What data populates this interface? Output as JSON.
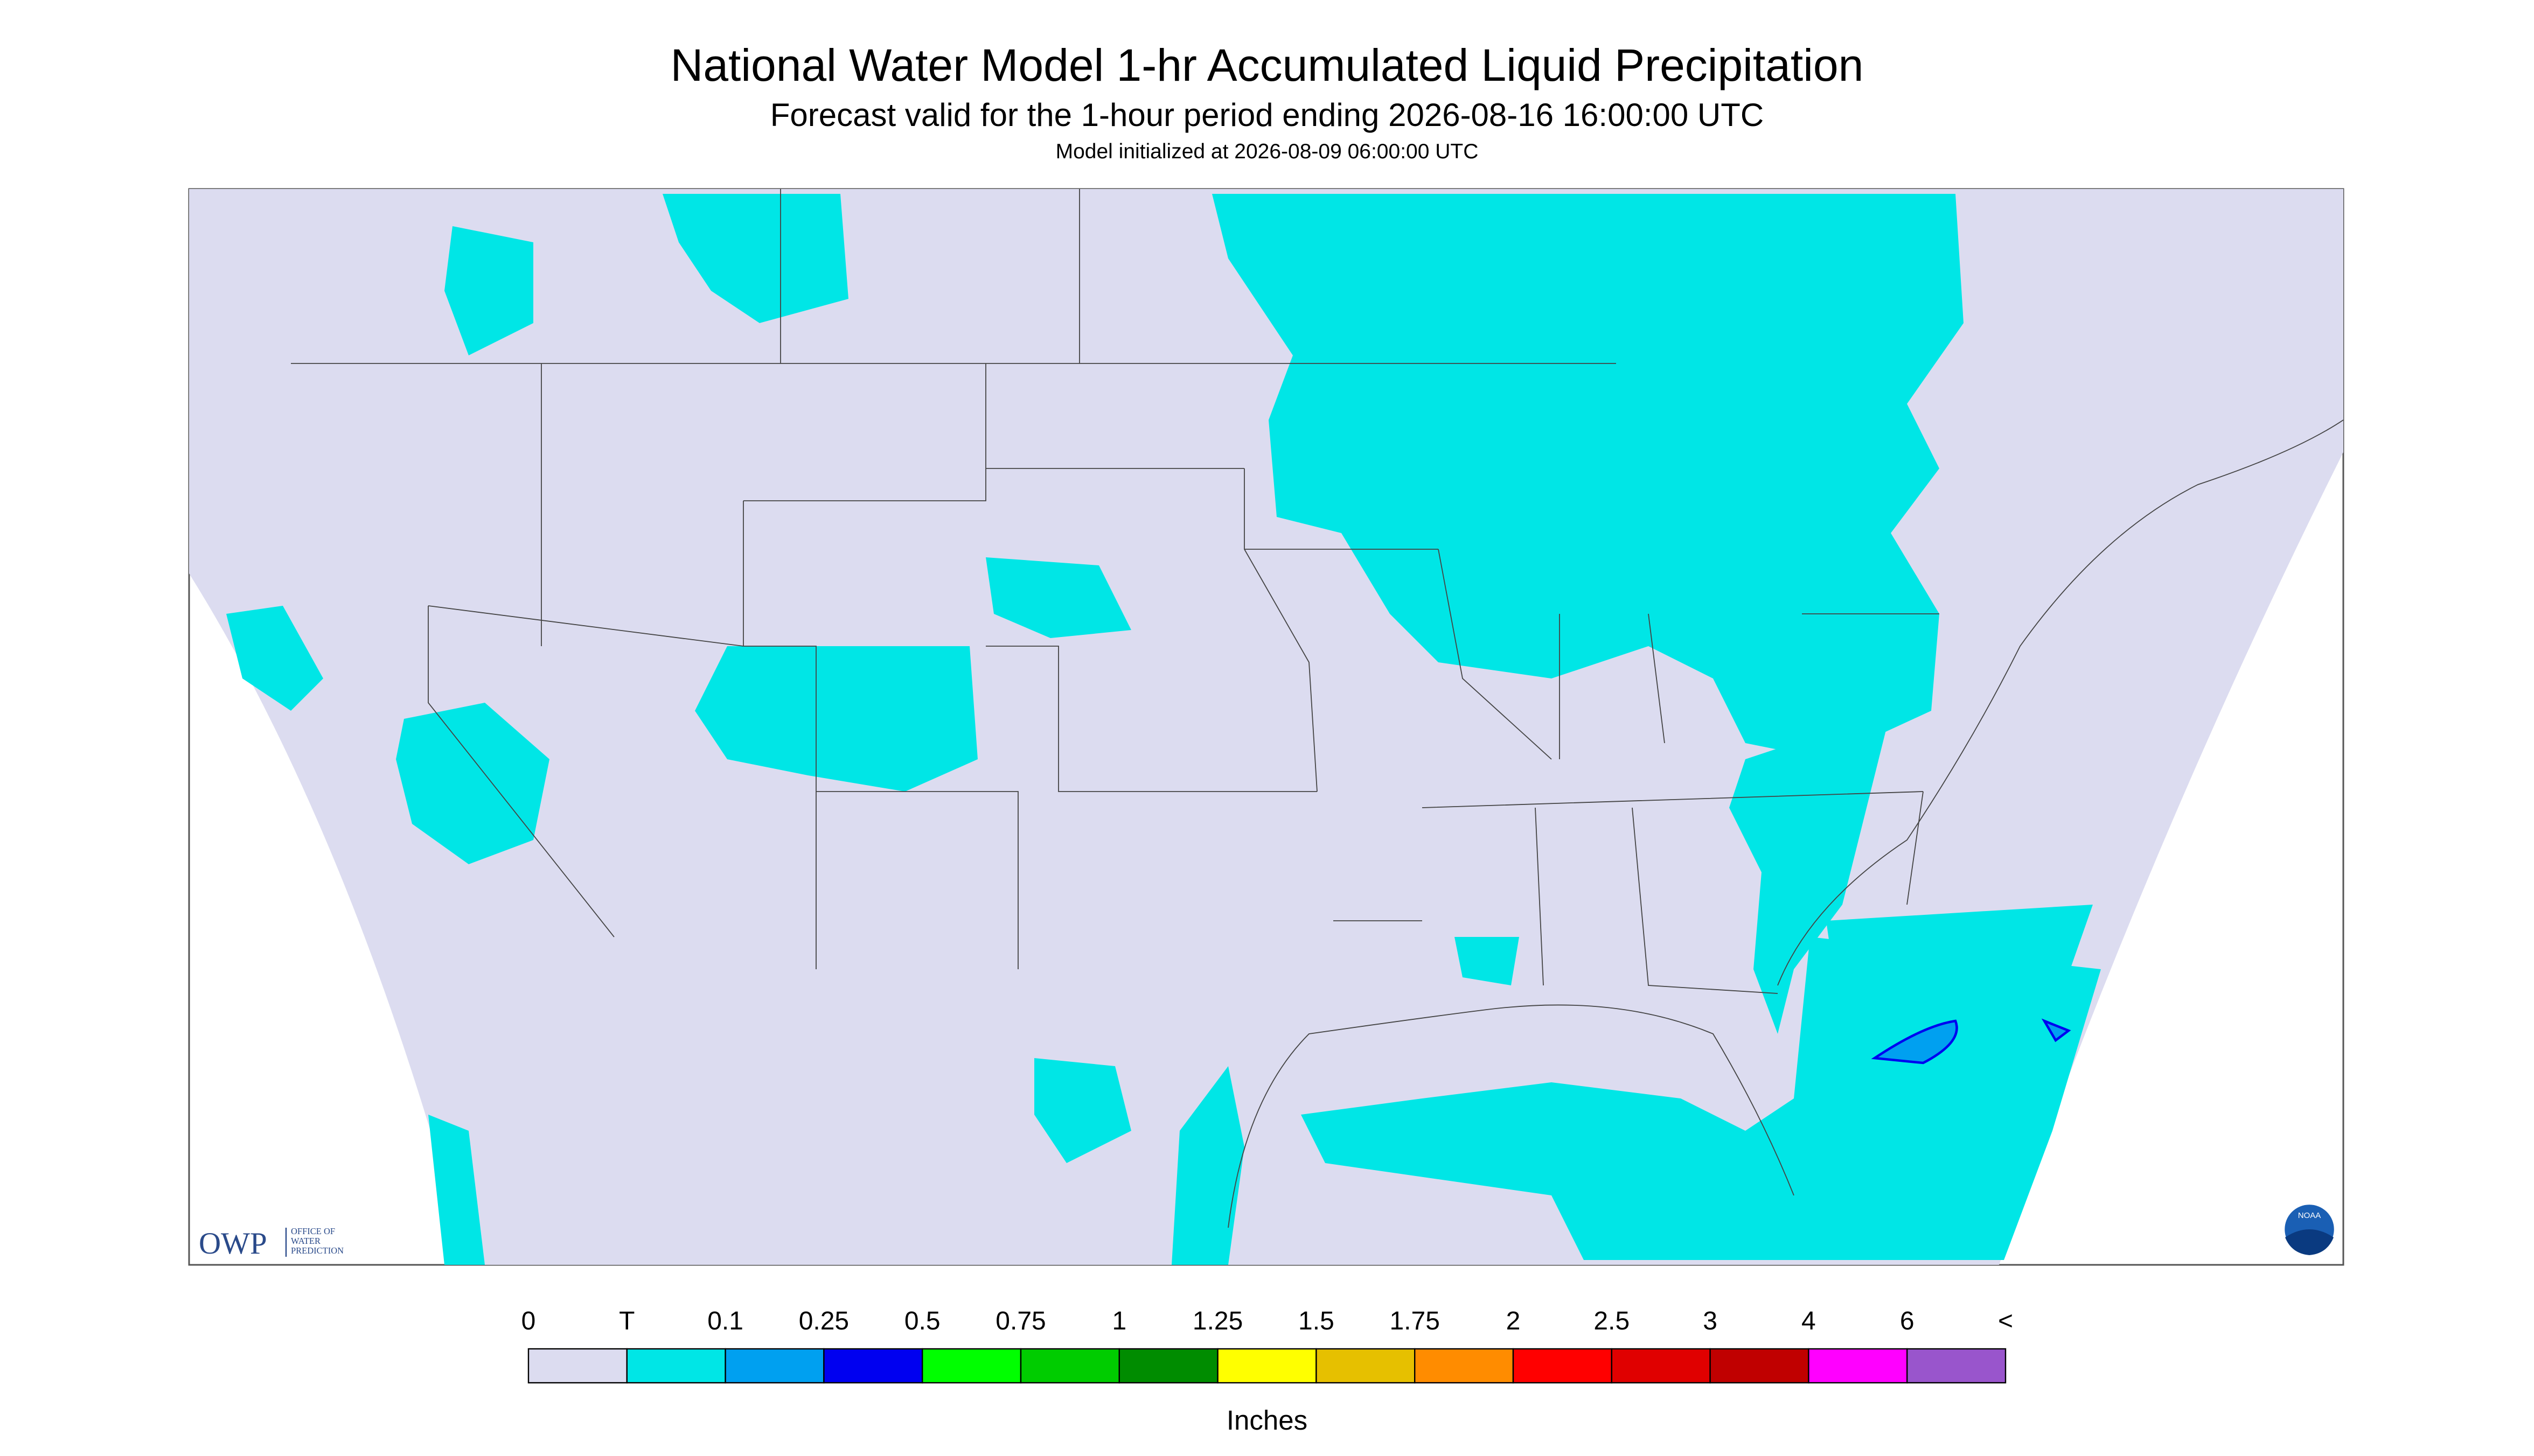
{
  "header": {
    "title": "National Water Model 1-hr Accumulated Liquid Precipitation",
    "subtitle": "Forecast valid for the 1-hour period ending 2026-08-16 16:00:00 UTC",
    "init": "Model initialized at 2026-08-09 06:00:00 UTC"
  },
  "legend": {
    "labels": [
      "0",
      "T",
      "0.1",
      "0.25",
      "0.5",
      "0.75",
      "1",
      "1.25",
      "1.5",
      "1.75",
      "2",
      "2.5",
      "3",
      "4",
      "6",
      "<"
    ],
    "colors": [
      "#dcdcf0",
      "#00e6e6",
      "#00a0f0",
      "#0000f0",
      "#00ff00",
      "#00cc00",
      "#008c00",
      "#ffff00",
      "#e6c000",
      "#ff8c00",
      "#ff0000",
      "#e00000",
      "#c00000",
      "#ff00ff",
      "#9955cc"
    ],
    "unit": "Inches"
  },
  "logos": {
    "owp": "OWP",
    "owp_text": [
      "OFFICE OF",
      "WATER",
      "PREDICTION"
    ],
    "noaa": "NOAA"
  }
}
